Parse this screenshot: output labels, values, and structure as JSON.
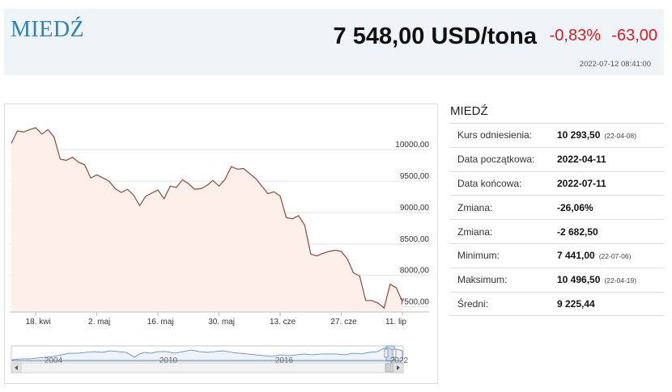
{
  "header": {
    "title": "MIEDŹ",
    "price": "7 548,00 USD/tona",
    "change_pct": "-0,83%",
    "change_abs": "-63,00",
    "timestamp": "2022-07-12 08:41:00"
  },
  "colors": {
    "title": "#2a84b8",
    "negative": "#e01a22",
    "line": "#8b4a3c",
    "area_fill": "#fdf0ea"
  },
  "stats": {
    "title": "MIEDŹ",
    "rows": [
      {
        "label": "Kurs odniesienia:",
        "value": "10 293,50",
        "date": "(22-04-08)"
      },
      {
        "label": "Data początkowa:",
        "value": "2022-04-11",
        "date": ""
      },
      {
        "label": "Data końcowa:",
        "value": "2022-07-11",
        "date": ""
      },
      {
        "label": "Zmiana:",
        "value": "-26,06%",
        "date": ""
      },
      {
        "label": "Zmiana:",
        "value": "-2 682,50",
        "date": ""
      },
      {
        "label": "Minimum:",
        "value": "7 441,00",
        "date": "(22-07-06)"
      },
      {
        "label": "Maksimum:",
        "value": "10 496,50",
        "date": "(22-04-19)"
      },
      {
        "label": "Średni:",
        "value": "9 225,44",
        "date": ""
      }
    ]
  },
  "chart_data": {
    "type": "area",
    "x_tick_labels": [
      "18. kwi",
      "2. maj",
      "16. maj",
      "30. maj",
      "13. cze",
      "27. cze",
      "11. lip"
    ],
    "y_tick_labels": [
      "10000,00",
      "9500,00",
      "9000,00",
      "8500,00",
      "8000,00",
      "7500,00"
    ],
    "y_ticks": [
      10000,
      9500,
      9000,
      8500,
      8000,
      7500
    ],
    "ylim": [
      7430,
      10620
    ],
    "grid": true,
    "x": [
      "2022-04-11",
      "2022-04-12",
      "2022-04-13",
      "2022-04-14",
      "2022-04-18",
      "2022-04-19",
      "2022-04-20",
      "2022-04-21",
      "2022-04-22",
      "2022-04-25",
      "2022-04-26",
      "2022-04-27",
      "2022-04-28",
      "2022-04-29",
      "2022-05-02",
      "2022-05-03",
      "2022-05-04",
      "2022-05-05",
      "2022-05-06",
      "2022-05-09",
      "2022-05-10",
      "2022-05-11",
      "2022-05-12",
      "2022-05-13",
      "2022-05-16",
      "2022-05-17",
      "2022-05-18",
      "2022-05-19",
      "2022-05-20",
      "2022-05-23",
      "2022-05-24",
      "2022-05-25",
      "2022-05-26",
      "2022-05-27",
      "2022-05-30",
      "2022-05-31",
      "2022-06-01",
      "2022-06-02",
      "2022-06-03",
      "2022-06-06",
      "2022-06-07",
      "2022-06-08",
      "2022-06-09",
      "2022-06-10",
      "2022-06-13",
      "2022-06-14",
      "2022-06-15",
      "2022-06-16",
      "2022-06-17",
      "2022-06-20",
      "2022-06-21",
      "2022-06-22",
      "2022-06-23",
      "2022-06-24",
      "2022-06-27",
      "2022-06-28",
      "2022-06-29",
      "2022-06-30",
      "2022-07-01",
      "2022-07-04",
      "2022-07-05",
      "2022-07-06",
      "2022-07-07",
      "2022-07-08",
      "2022-07-11"
    ],
    "values": [
      10100,
      10300,
      10280,
      10320,
      10350,
      10250,
      10320,
      10200,
      9850,
      9830,
      9880,
      9800,
      9760,
      9550,
      9600,
      9550,
      9500,
      9380,
      9320,
      9370,
      9280,
      9110,
      9260,
      9310,
      9360,
      9220,
      9420,
      9400,
      9520,
      9460,
      9370,
      9380,
      9430,
      9510,
      9420,
      9530,
      9730,
      9690,
      9700,
      9620,
      9540,
      9420,
      9300,
      9330,
      9260,
      8920,
      8900,
      8950,
      8800,
      8340,
      8310,
      8350,
      8380,
      8400,
      8380,
      8260,
      8040,
      7990,
      7600,
      7600,
      7560,
      7480,
      7860,
      7800,
      7580
    ],
    "navigator": {
      "x_labels": [
        "2004",
        "2010",
        "2016",
        "2022"
      ]
    }
  }
}
